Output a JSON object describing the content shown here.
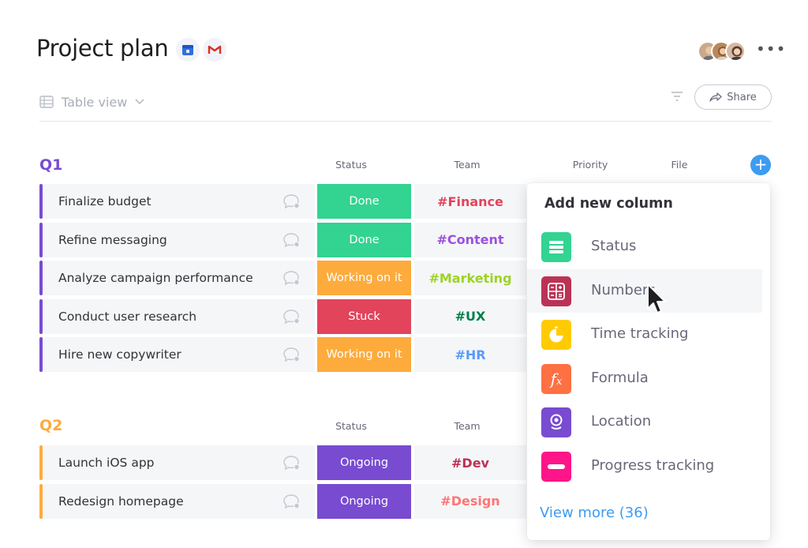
{
  "header": {
    "title": "Project plan",
    "view_label": "Table view",
    "share_label": "Share",
    "apps": [
      "calendar-app-icon",
      "gmail-app-icon"
    ]
  },
  "columns": {
    "status": "Status",
    "team": "Team",
    "priority": "Priority",
    "file": "File"
  },
  "groups": [
    {
      "title": "Q1",
      "color": "#784bd1",
      "rows": [
        {
          "name": "Finalize budget",
          "status": "Done",
          "status_color": "#33d391",
          "team": "#Finance",
          "team_color": "#e2445c"
        },
        {
          "name": "Refine messaging",
          "status": "Done",
          "status_color": "#33d391",
          "team": "#Content",
          "team_color": "#9d50dd"
        },
        {
          "name": "Analyze campaign performance",
          "status": "Working on it",
          "status_color": "#fdab3d",
          "team": "#Marketing",
          "team_color": "#9cd326"
        },
        {
          "name": "Conduct user research",
          "status": "Stuck",
          "status_color": "#e2445c",
          "team": "#UX",
          "team_color": "#037f4c"
        },
        {
          "name": "Hire new copywriter",
          "status": "Working on it",
          "status_color": "#fdab3d",
          "team": "#HR",
          "team_color": "#579bfc"
        }
      ]
    },
    {
      "title": "Q2",
      "color": "#fdab3d",
      "rows": [
        {
          "name": "Launch iOS app",
          "status": "Ongoing",
          "status_color": "#784bd1",
          "team": "#Dev",
          "team_color": "#bb3354"
        },
        {
          "name": "Redesign homepage",
          "status": "Ongoing",
          "status_color": "#784bd1",
          "team": "#Design",
          "team_color": "#ff7575"
        }
      ]
    }
  ],
  "popup": {
    "title": "Add new column",
    "items": [
      {
        "label": "Status",
        "icon": "status-icon",
        "color": "#33d391"
      },
      {
        "label": "Numbers",
        "icon": "numbers-icon",
        "color": "#bb3354"
      },
      {
        "label": "Time tracking",
        "icon": "time-tracking-icon",
        "color": "#ffcb00"
      },
      {
        "label": "Formula",
        "icon": "formula-icon",
        "color": "#ff7043"
      },
      {
        "label": "Location",
        "icon": "location-icon",
        "color": "#784bd1"
      },
      {
        "label": "Progress tracking",
        "icon": "progress-tracking-icon",
        "color": "#ff158a"
      }
    ],
    "view_more": "View more (36)"
  }
}
